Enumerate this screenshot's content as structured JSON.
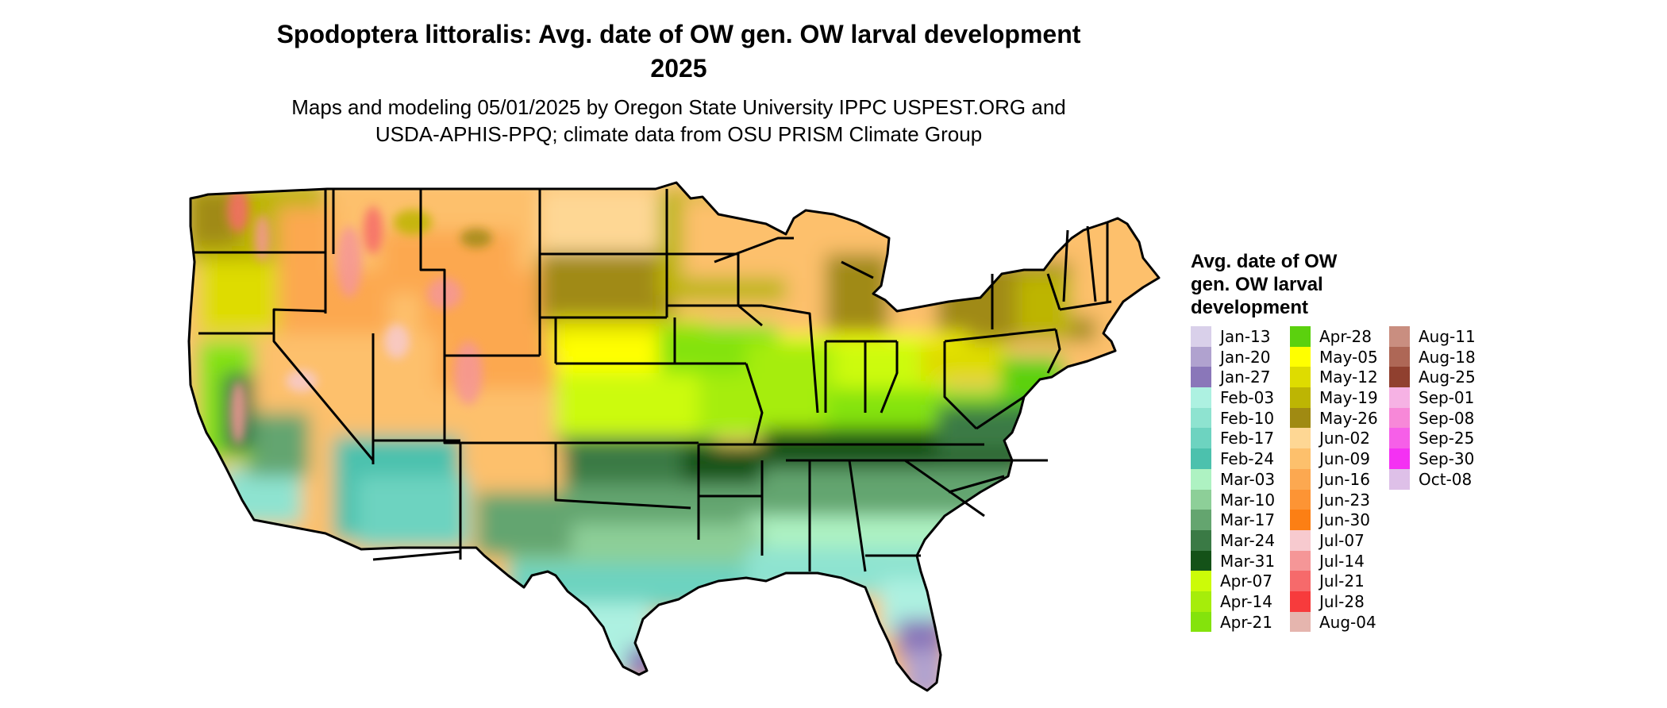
{
  "title_line1": "Spodoptera littoralis: Avg. date of OW gen. OW larval development",
  "title_line2": "2025",
  "subtitle_line1": "Maps and modeling 05/01/2025 by Oregon State University IPPC USPEST.ORG and",
  "subtitle_line2": "USDA-APHIS-PPQ; climate data from OSU PRISM Climate Group",
  "legend": {
    "title": "Avg. date of OW gen. OW larval development",
    "items": [
      {
        "label": "Jan-13",
        "color": "#d9d0ea"
      },
      {
        "label": "Jan-20",
        "color": "#b0a2cf"
      },
      {
        "label": "Jan-27",
        "color": "#8a77b9"
      },
      {
        "label": "Feb-03",
        "color": "#adf1e1"
      },
      {
        "label": "Feb-10",
        "color": "#8ee3d0"
      },
      {
        "label": "Feb-17",
        "color": "#6dd3c0"
      },
      {
        "label": "Feb-24",
        "color": "#4cc1ad"
      },
      {
        "label": "Mar-03",
        "color": "#aef2c2"
      },
      {
        "label": "Mar-10",
        "color": "#8dcf98"
      },
      {
        "label": "Mar-17",
        "color": "#64a56f"
      },
      {
        "label": "Mar-24",
        "color": "#3a7a45"
      },
      {
        "label": "Mar-31",
        "color": "#145218"
      },
      {
        "label": "Apr-07",
        "color": "#ccfb08"
      },
      {
        "label": "Apr-14",
        "color": "#a6ed0a"
      },
      {
        "label": "Apr-21",
        "color": "#84e30c"
      },
      {
        "label": "Apr-28",
        "color": "#5bd10e"
      },
      {
        "label": "May-05",
        "color": "#ffff00"
      },
      {
        "label": "May-12",
        "color": "#dedc00"
      },
      {
        "label": "May-19",
        "color": "#bdb503"
      },
      {
        "label": "May-26",
        "color": "#a08a12"
      },
      {
        "label": "Jun-02",
        "color": "#fed794"
      },
      {
        "label": "Jun-09",
        "color": "#fdc06c"
      },
      {
        "label": "Jun-16",
        "color": "#fca850"
      },
      {
        "label": "Jun-23",
        "color": "#fd9434"
      },
      {
        "label": "Jun-30",
        "color": "#fc7f14"
      },
      {
        "label": "Jul-07",
        "color": "#f7cacf"
      },
      {
        "label": "Jul-14",
        "color": "#f59697"
      },
      {
        "label": "Jul-21",
        "color": "#f66a6b"
      },
      {
        "label": "Jul-28",
        "color": "#f73b3c"
      },
      {
        "label": "Aug-04",
        "color": "#e5b5ae"
      },
      {
        "label": "Aug-11",
        "color": "#c98e80"
      },
      {
        "label": "Aug-18",
        "color": "#ae6756"
      },
      {
        "label": "Aug-25",
        "color": "#90402f"
      },
      {
        "label": "Sep-01",
        "color": "#f6b2e4"
      },
      {
        "label": "Sep-08",
        "color": "#f788d8"
      },
      {
        "label": "Sep-25",
        "color": "#f65fe8"
      },
      {
        "label": "Sep-30",
        "color": "#f431f3"
      },
      {
        "label": "Oct-08",
        "color": "#dec0e8"
      }
    ]
  }
}
